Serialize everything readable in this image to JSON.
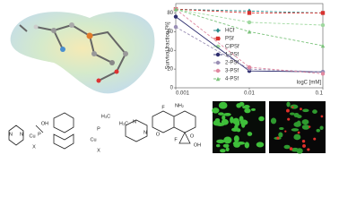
{
  "chart_data": {
    "type": "line",
    "y_label": "Survival fraction [%]",
    "x_label": "logC [mM]",
    "x": [
      0.001,
      0.01,
      0.1
    ],
    "xlim": [
      0.001,
      0.1
    ],
    "xticks": [
      0.001,
      0.01,
      0.1
    ],
    "x_log": true,
    "ylim": [
      0,
      90
    ],
    "yticks": [
      0,
      20,
      40,
      60,
      80
    ],
    "legend": "right",
    "series": [
      {
        "name": "HCf",
        "color": "#2a8a8a",
        "marker": "diamond",
        "dash": true,
        "values": [
          84,
          82,
          80
        ]
      },
      {
        "name": "PSf",
        "color": "#d9322f",
        "marker": "square",
        "dash": true,
        "values": [
          84,
          80,
          80
        ]
      },
      {
        "name": "CIPSf",
        "color": "#9fd89f",
        "marker": "circle",
        "dash": true,
        "values": [
          84,
          70,
          67
        ]
      },
      {
        "name": "1-PSf",
        "color": "#2d2d6e",
        "marker": "circle",
        "dash": false,
        "values": [
          76,
          18,
          17
        ]
      },
      {
        "name": "2-PSf",
        "color": "#9a8fb5",
        "marker": "circle",
        "dash": true,
        "values": [
          65,
          20,
          17
        ]
      },
      {
        "name": "3-PSf",
        "color": "#e088a0",
        "marker": "circle",
        "dash": true,
        "values": [
          84,
          22,
          15
        ]
      },
      {
        "name": "4-PSf",
        "color": "#7ac27a",
        "marker": "triangle",
        "dash": true,
        "values": [
          84,
          60,
          45
        ]
      }
    ]
  },
  "structures": {
    "left": [
      "OH",
      "P",
      "Cu",
      "X",
      "N",
      "N"
    ],
    "right": [
      "H₃C",
      "P",
      "Cu",
      "X",
      "H₃C",
      "N",
      "N",
      "F",
      "NH₂",
      "O",
      "OH",
      "F",
      "O"
    ]
  }
}
